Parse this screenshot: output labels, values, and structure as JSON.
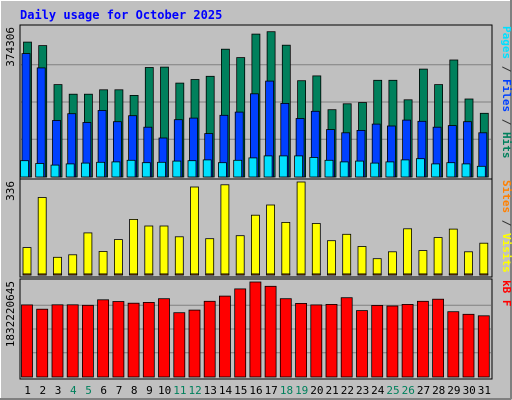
{
  "title": "Daily usage for October 2025",
  "chart_data": {
    "type": "bar",
    "categories": [
      "1",
      "2",
      "3",
      "4",
      "5",
      "6",
      "7",
      "8",
      "9",
      "10",
      "11",
      "12",
      "13",
      "14",
      "15",
      "16",
      "17",
      "18",
      "19",
      "20",
      "21",
      "22",
      "23",
      "24",
      "25",
      "26",
      "27",
      "28",
      "29",
      "30",
      "31"
    ],
    "weekend_days": [
      "4",
      "5",
      "11",
      "12",
      "18",
      "19",
      "25",
      "26"
    ],
    "panels": [
      {
        "id": "top",
        "ymax_label": "374306",
        "ymax": 374306,
        "legend": [
          {
            "text": "Pages",
            "color": "#00e0ff"
          },
          {
            "text": " / ",
            "color": "#333333"
          },
          {
            "text": "Files",
            "color": "#0040ff"
          },
          {
            "text": " / ",
            "color": "#333333"
          },
          {
            "text": "Hits",
            "color": "#00805c"
          }
        ],
        "series": [
          {
            "name": "Hits",
            "color": "#00805c",
            "values": [
              339000,
              330000,
              232000,
              208000,
              208000,
              219000,
              219000,
              205000,
              275000,
              276000,
              236000,
              245000,
              253000,
              321000,
              300000,
              359000,
              365000,
              331000,
              242000,
              254000,
              169000,
              184000,
              187000,
              243000,
              243000,
              194000,
              271000,
              232000,
              294000,
              196000,
              160000
            ]
          },
          {
            "name": "Files",
            "color": "#0040ff",
            "values": [
              310000,
              274000,
              142000,
              159000,
              137000,
              167000,
              139000,
              154000,
              125000,
              98000,
              144000,
              148000,
              109000,
              155000,
              163000,
              209000,
              241000,
              185000,
              147000,
              165000,
              119000,
              111000,
              117000,
              133000,
              128000,
              143000,
              140000,
              125000,
              129000,
              139000,
              111000
            ]
          },
          {
            "name": "Pages",
            "color": "#00e0ff",
            "values": [
              41000,
              34000,
              30000,
              33000,
              35000,
              37000,
              38000,
              42000,
              36000,
              37000,
              40000,
              41000,
              43000,
              36000,
              42000,
              48000,
              53000,
              53000,
              53000,
              49000,
              42000,
              38000,
              40000,
              35000,
              38000,
              43000,
              46000,
              33000,
              36000,
              33000,
              27000
            ]
          }
        ]
      },
      {
        "id": "middle",
        "ymax_label": "336",
        "ymax": 336,
        "legend": [
          {
            "text": "Sites",
            "color": "#ff8000"
          },
          {
            "text": " / ",
            "color": "#333333"
          },
          {
            "text": "Visits",
            "color": "#ffff00"
          }
        ],
        "series": [
          {
            "name": "Visits",
            "color": "#ffff00",
            "values": [
              99,
              280,
              64,
              73,
              152,
              85,
              128,
              201,
              177,
              177,
              138,
              318,
              131,
              326,
              142,
              216,
              253,
              190,
              336,
              186,
              124,
              147,
              103,
              59,
              84,
              167,
              88,
              135,
              166,
              84,
              115
            ]
          },
          {
            "name": "Sites",
            "color": "#ff8000",
            "values": [
              4,
              4,
              4,
              4,
              4,
              4,
              4,
              4,
              4,
              4,
              4,
              4,
              4,
              4,
              4,
              4,
              4,
              4,
              4,
              4,
              4,
              4,
              4,
              4,
              4,
              4,
              4,
              4,
              4,
              4,
              4
            ]
          }
        ]
      },
      {
        "id": "bottom",
        "ymax_label": "1832220645",
        "ymax": 1832220645,
        "legend": [
          {
            "text": "kB F",
            "color": "#ff0000"
          }
        ],
        "series": [
          {
            "name": "kB F",
            "color": "#ff0000",
            "values": [
              1390000000,
              1307000000,
              1392000000,
              1392000000,
              1382000000,
              1489000000,
              1457000000,
              1424000000,
              1439000000,
              1510000000,
              1240000000,
              1290000000,
              1460000000,
              1560000000,
              1700000000,
              1832220645,
              1750000000,
              1510000000,
              1420000000,
              1390000000,
              1400000000,
              1530000000,
              1280000000,
              1380000000,
              1370000000,
              1400000000,
              1460000000,
              1500000000,
              1260000000,
              1210000000,
              1180000000
            ]
          }
        ]
      }
    ]
  }
}
